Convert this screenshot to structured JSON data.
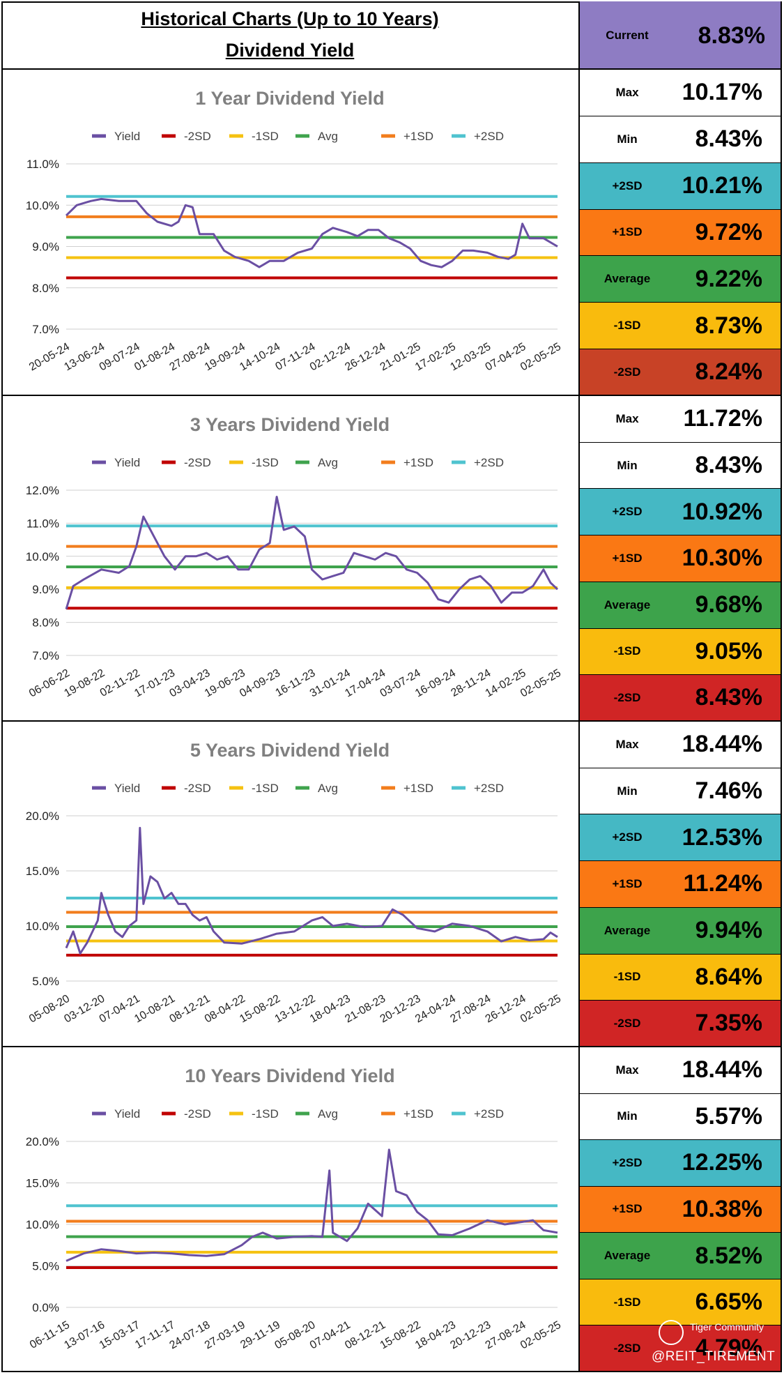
{
  "header": {
    "line1": "Historical Charts (Up to 10 Years)",
    "line2": "Dividend Yield",
    "current_label": "Current",
    "current_value": "8.83%"
  },
  "legend_labels": [
    "Yield",
    "-2SD",
    "-1SD",
    "Avg",
    "+1SD",
    "+2SD"
  ],
  "colors": {
    "yield": "#6a4fa3",
    "m2sd": "#c00000",
    "m1sd": "#f5c211",
    "avg": "#3fa34d",
    "p1sd": "#f27d1d",
    "p2sd": "#4fc3cf",
    "current_bg": "#8e7cc3"
  },
  "stat_labels": [
    "Max",
    "Min",
    "+2SD",
    "+1SD",
    "Average",
    "-1SD",
    "-2SD"
  ],
  "stat_colors": [
    "#ffffff",
    "#ffffff",
    "#45b8c4",
    "#fa7814",
    "#3da34b",
    "#f9bb0d",
    "#d02525"
  ],
  "watermark": {
    "brand": "Tiger Community",
    "handle": "@REIT_TIREMENT"
  },
  "sections": [
    {
      "stats": [
        "10.17%",
        "8.43%",
        "10.21%",
        "9.72%",
        "9.22%",
        "8.73%",
        "8.24%"
      ],
      "minus2_bg": "#c84226"
    },
    {
      "stats": [
        "11.72%",
        "8.43%",
        "10.92%",
        "10.30%",
        "9.68%",
        "9.05%",
        "8.43%"
      ]
    },
    {
      "stats": [
        "18.44%",
        "7.46%",
        "12.53%",
        "11.24%",
        "9.94%",
        "8.64%",
        "7.35%"
      ]
    },
    {
      "stats": [
        "18.44%",
        "5.57%",
        "12.25%",
        "10.38%",
        "8.52%",
        "6.65%",
        "4.79%"
      ]
    }
  ],
  "chart_data": [
    {
      "type": "line",
      "title": "1 Year Dividend Yield",
      "ylim": [
        7,
        11
      ],
      "yticks": [
        "7.0%",
        "8.0%",
        "9.0%",
        "10.0%",
        "11.0%"
      ],
      "ytick_values": [
        7,
        8,
        9,
        10,
        11
      ],
      "xticks": [
        "20-05-24",
        "13-06-24",
        "09-07-24",
        "01-08-24",
        "27-08-24",
        "19-09-24",
        "14-10-24",
        "07-11-24",
        "02-12-24",
        "26-12-24",
        "21-01-25",
        "17-02-25",
        "12-03-25",
        "07-04-25",
        "02-05-25"
      ],
      "bands": {
        "m2sd": 8.24,
        "m1sd": 8.73,
        "avg": 9.22,
        "p1sd": 9.72,
        "p2sd": 10.21
      },
      "yield_points": [
        [
          0,
          9.75
        ],
        [
          0.3,
          10.0
        ],
        [
          0.7,
          10.1
        ],
        [
          1.0,
          10.15
        ],
        [
          1.5,
          10.1
        ],
        [
          2.0,
          10.1
        ],
        [
          2.3,
          9.8
        ],
        [
          2.6,
          9.6
        ],
        [
          3.0,
          9.5
        ],
        [
          3.2,
          9.6
        ],
        [
          3.4,
          10.0
        ],
        [
          3.6,
          9.95
        ],
        [
          3.8,
          9.3
        ],
        [
          4.2,
          9.3
        ],
        [
          4.5,
          8.9
        ],
        [
          4.8,
          8.75
        ],
        [
          5.2,
          8.65
        ],
        [
          5.5,
          8.5
        ],
        [
          5.8,
          8.65
        ],
        [
          6.2,
          8.65
        ],
        [
          6.6,
          8.85
        ],
        [
          7.0,
          8.95
        ],
        [
          7.3,
          9.3
        ],
        [
          7.6,
          9.45
        ],
        [
          8.0,
          9.35
        ],
        [
          8.3,
          9.25
        ],
        [
          8.6,
          9.4
        ],
        [
          8.9,
          9.4
        ],
        [
          9.2,
          9.2
        ],
        [
          9.5,
          9.1
        ],
        [
          9.8,
          8.95
        ],
        [
          10.1,
          8.65
        ],
        [
          10.4,
          8.55
        ],
        [
          10.7,
          8.5
        ],
        [
          11.0,
          8.65
        ],
        [
          11.3,
          8.9
        ],
        [
          11.6,
          8.9
        ],
        [
          12.0,
          8.85
        ],
        [
          12.3,
          8.75
        ],
        [
          12.6,
          8.7
        ],
        [
          12.8,
          8.8
        ],
        [
          13.0,
          9.55
        ],
        [
          13.2,
          9.2
        ],
        [
          13.6,
          9.2
        ],
        [
          14.0,
          9.0
        ]
      ]
    },
    {
      "type": "line",
      "title": "3 Years Dividend Yield",
      "ylim": [
        7,
        12
      ],
      "yticks": [
        "7.0%",
        "8.0%",
        "9.0%",
        "10.0%",
        "11.0%",
        "12.0%"
      ],
      "ytick_values": [
        7,
        8,
        9,
        10,
        11,
        12
      ],
      "xticks": [
        "06-06-22",
        "19-08-22",
        "02-11-22",
        "17-01-23",
        "03-04-23",
        "19-06-23",
        "04-09-23",
        "16-11-23",
        "31-01-24",
        "17-04-24",
        "03-07-24",
        "16-09-24",
        "28-11-24",
        "14-02-25",
        "02-05-25"
      ],
      "bands": {
        "m2sd": 8.43,
        "m1sd": 9.05,
        "avg": 9.68,
        "p1sd": 10.3,
        "p2sd": 10.92
      },
      "yield_points": [
        [
          0,
          8.4
        ],
        [
          0.2,
          9.1
        ],
        [
          0.5,
          9.3
        ],
        [
          1.0,
          9.6
        ],
        [
          1.5,
          9.5
        ],
        [
          1.8,
          9.7
        ],
        [
          2.0,
          10.3
        ],
        [
          2.2,
          11.2
        ],
        [
          2.5,
          10.6
        ],
        [
          2.8,
          10.0
        ],
        [
          3.1,
          9.6
        ],
        [
          3.4,
          10.0
        ],
        [
          3.7,
          10.0
        ],
        [
          4.0,
          10.1
        ],
        [
          4.3,
          9.9
        ],
        [
          4.6,
          10.0
        ],
        [
          4.9,
          9.6
        ],
        [
          5.2,
          9.6
        ],
        [
          5.5,
          10.2
        ],
        [
          5.8,
          10.4
        ],
        [
          6.0,
          11.8
        ],
        [
          6.2,
          10.8
        ],
        [
          6.5,
          10.9
        ],
        [
          6.8,
          10.6
        ],
        [
          7.0,
          9.6
        ],
        [
          7.3,
          9.3
        ],
        [
          7.6,
          9.4
        ],
        [
          7.9,
          9.5
        ],
        [
          8.2,
          10.1
        ],
        [
          8.5,
          10.0
        ],
        [
          8.8,
          9.9
        ],
        [
          9.1,
          10.1
        ],
        [
          9.4,
          10.0
        ],
        [
          9.7,
          9.6
        ],
        [
          10.0,
          9.5
        ],
        [
          10.3,
          9.2
        ],
        [
          10.6,
          8.7
        ],
        [
          10.9,
          8.6
        ],
        [
          11.2,
          9.0
        ],
        [
          11.5,
          9.3
        ],
        [
          11.8,
          9.4
        ],
        [
          12.1,
          9.1
        ],
        [
          12.4,
          8.6
        ],
        [
          12.7,
          8.9
        ],
        [
          13.0,
          8.9
        ],
        [
          13.3,
          9.1
        ],
        [
          13.6,
          9.6
        ],
        [
          13.8,
          9.2
        ],
        [
          14.0,
          9.0
        ]
      ]
    },
    {
      "type": "line",
      "title": "5 Years Dividend Yield",
      "ylim": [
        5,
        20
      ],
      "yticks": [
        "5.0%",
        "10.0%",
        "15.0%",
        "20.0%"
      ],
      "ytick_values": [
        5,
        10,
        15,
        20
      ],
      "xticks": [
        "05-08-20",
        "03-12-20",
        "07-04-21",
        "10-08-21",
        "08-12-21",
        "08-04-22",
        "15-08-22",
        "13-12-22",
        "18-04-23",
        "21-08-23",
        "20-12-23",
        "24-04-24",
        "27-08-24",
        "26-12-24",
        "02-05-25"
      ],
      "bands": {
        "m2sd": 7.35,
        "m1sd": 8.64,
        "avg": 9.94,
        "p1sd": 11.24,
        "p2sd": 12.53
      },
      "yield_points": [
        [
          0,
          8.0
        ],
        [
          0.2,
          9.5
        ],
        [
          0.4,
          7.5
        ],
        [
          0.6,
          8.5
        ],
        [
          0.9,
          10.5
        ],
        [
          1.0,
          13.0
        ],
        [
          1.2,
          11.0
        ],
        [
          1.4,
          9.5
        ],
        [
          1.6,
          9.0
        ],
        [
          1.8,
          10.0
        ],
        [
          2.0,
          10.5
        ],
        [
          2.1,
          18.9
        ],
        [
          2.2,
          12.0
        ],
        [
          2.4,
          14.5
        ],
        [
          2.6,
          14.0
        ],
        [
          2.8,
          12.5
        ],
        [
          3.0,
          13.0
        ],
        [
          3.2,
          12.0
        ],
        [
          3.4,
          12.0
        ],
        [
          3.6,
          11.0
        ],
        [
          3.8,
          10.5
        ],
        [
          4.0,
          10.8
        ],
        [
          4.2,
          9.5
        ],
        [
          4.5,
          8.5
        ],
        [
          5.0,
          8.4
        ],
        [
          5.5,
          8.8
        ],
        [
          6.0,
          9.3
        ],
        [
          6.5,
          9.5
        ],
        [
          7.0,
          10.5
        ],
        [
          7.3,
          10.8
        ],
        [
          7.6,
          10.0
        ],
        [
          8.0,
          10.2
        ],
        [
          8.5,
          9.9
        ],
        [
          9.0,
          10.0
        ],
        [
          9.3,
          11.5
        ],
        [
          9.6,
          11.0
        ],
        [
          10.0,
          9.8
        ],
        [
          10.5,
          9.5
        ],
        [
          11.0,
          10.2
        ],
        [
          11.5,
          10.0
        ],
        [
          12.0,
          9.5
        ],
        [
          12.4,
          8.6
        ],
        [
          12.8,
          9.0
        ],
        [
          13.2,
          8.7
        ],
        [
          13.6,
          8.8
        ],
        [
          13.8,
          9.4
        ],
        [
          14.0,
          9.0
        ]
      ]
    },
    {
      "type": "line",
      "title": "10 Years Dividend Yield",
      "ylim": [
        0,
        20
      ],
      "yticks": [
        "0.0%",
        "5.0%",
        "10.0%",
        "15.0%",
        "20.0%"
      ],
      "ytick_values": [
        0,
        5,
        10,
        15,
        20
      ],
      "xticks": [
        "06-11-15",
        "13-07-16",
        "15-03-17",
        "17-11-17",
        "24-07-18",
        "27-03-19",
        "29-11-19",
        "05-08-20",
        "07-04-21",
        "08-12-21",
        "15-08-22",
        "18-04-23",
        "20-12-23",
        "27-08-24",
        "02-05-25"
      ],
      "bands": {
        "m2sd": 4.79,
        "m1sd": 6.65,
        "avg": 8.52,
        "p1sd": 10.38,
        "p2sd": 12.25
      },
      "yield_points": [
        [
          0,
          5.6
        ],
        [
          0.5,
          6.5
        ],
        [
          1.0,
          7.0
        ],
        [
          1.5,
          6.8
        ],
        [
          2.0,
          6.5
        ],
        [
          2.5,
          6.6
        ],
        [
          3.0,
          6.5
        ],
        [
          3.5,
          6.3
        ],
        [
          4.0,
          6.2
        ],
        [
          4.5,
          6.4
        ],
        [
          5.0,
          7.5
        ],
        [
          5.3,
          8.5
        ],
        [
          5.6,
          9.0
        ],
        [
          6.0,
          8.3
        ],
        [
          6.5,
          8.5
        ],
        [
          7.0,
          8.6
        ],
        [
          7.3,
          8.5
        ],
        [
          7.5,
          16.5
        ],
        [
          7.6,
          9.0
        ],
        [
          8.0,
          8.0
        ],
        [
          8.3,
          9.5
        ],
        [
          8.6,
          12.5
        ],
        [
          9.0,
          11.0
        ],
        [
          9.2,
          19.0
        ],
        [
          9.4,
          14.0
        ],
        [
          9.7,
          13.5
        ],
        [
          10.0,
          11.5
        ],
        [
          10.3,
          10.5
        ],
        [
          10.6,
          8.8
        ],
        [
          11.0,
          8.7
        ],
        [
          11.5,
          9.5
        ],
        [
          12.0,
          10.5
        ],
        [
          12.5,
          10.0
        ],
        [
          13.0,
          10.3
        ],
        [
          13.3,
          10.5
        ],
        [
          13.6,
          9.3
        ],
        [
          14.0,
          9.0
        ]
      ]
    }
  ]
}
